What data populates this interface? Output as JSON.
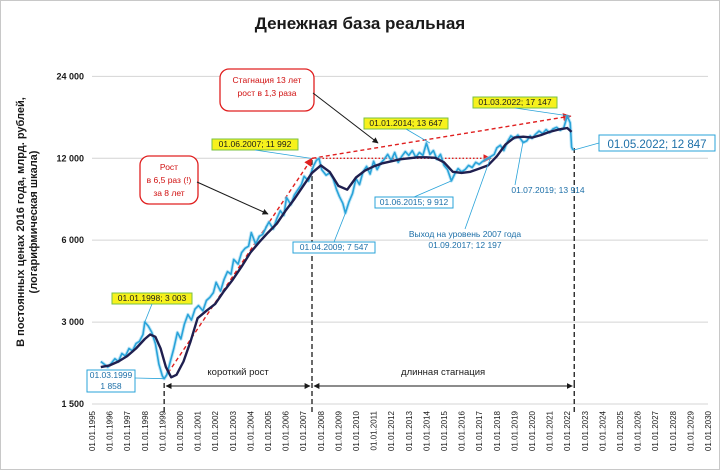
{
  "chart_data": {
    "type": "line",
    "title": "Денежная база реальная",
    "ylabel": "В постоянных ценах 2016 года, млрд. рублей, (логарифмическая шкала)",
    "ylabel_line1": "В постоянных ценах 2016 года, млрд. рублей,",
    "ylabel_line2": "(логарифмическая шкала)",
    "y_scale": "log",
    "ylim": [
      1500,
      30000
    ],
    "yticks": [
      1500,
      3000,
      6000,
      12000,
      24000
    ],
    "ytick_labels": [
      "1 500",
      "3 000",
      "6 000",
      "12 000",
      "24 000"
    ],
    "xlim": [
      1995.0,
      2030.0
    ],
    "xtick_labels": [
      "01.01.1995",
      "01.01.1996",
      "01.01.1997",
      "01.01.1998",
      "01.01.1999",
      "01.01.2000",
      "01.01.2001",
      "01.01.2002",
      "01.01.2003",
      "01.01.2004",
      "01.01.2005",
      "01.01.2006",
      "01.01.2007",
      "01.01.2008",
      "01.01.2009",
      "01.01.2010",
      "01.01.2011",
      "01.01.2012",
      "01.01.2013",
      "01.01.2014",
      "01.01.2015",
      "01.01.2016",
      "01.01.2017",
      "01.01.2018",
      "01.01.2019",
      "01.01.2020",
      "01.01.2021",
      "01.01.2022",
      "01.01.2023",
      "01.01.2024",
      "01.01.2025",
      "01.01.2026",
      "01.01.2027",
      "01.01.2028",
      "01.01.2029",
      "01.01.2030"
    ],
    "grid": "horizontal",
    "series": [
      {
        "name": "",
        "style": "monthly",
        "color": "#29a3d9",
        "x": [
          1995.5,
          1995.7,
          1995.9,
          1996.1,
          1996.3,
          1996.5,
          1996.7,
          1996.9,
          1997.1,
          1997.3,
          1997.5,
          1997.7,
          1997.9,
          1998.0,
          1998.2,
          1998.4,
          1998.6,
          1998.8,
          1999.0,
          1999.1,
          1999.25,
          1999.45,
          1999.65,
          1999.85,
          2000.05,
          2000.25,
          2000.45,
          2000.65,
          2000.85,
          2001.05,
          2001.3,
          2001.5,
          2001.7,
          2001.9,
          2002.05,
          2002.3,
          2002.5,
          2002.7,
          2002.9,
          2003.05,
          2003.3,
          2003.5,
          2003.7,
          2003.9,
          2004.05,
          2004.3,
          2004.5,
          2004.7,
          2004.9,
          2005.05,
          2005.3,
          2005.5,
          2005.7,
          2005.9,
          2006.05,
          2006.3,
          2006.5,
          2006.7,
          2006.9,
          2007.05,
          2007.3,
          2007.45,
          2007.6,
          2007.75,
          2007.9,
          2008.05,
          2008.3,
          2008.5,
          2008.7,
          2008.9,
          2009.05,
          2009.25,
          2009.4,
          2009.6,
          2009.8,
          2010.0,
          2010.2,
          2010.4,
          2010.6,
          2010.8,
          2011.0,
          2011.2,
          2011.4,
          2011.6,
          2011.8,
          2012.0,
          2012.2,
          2012.4,
          2012.6,
          2012.8,
          2013.0,
          2013.2,
          2013.4,
          2013.6,
          2013.8,
          2014.0,
          2014.2,
          2014.4,
          2014.6,
          2014.8,
          2015.0,
          2015.2,
          2015.42,
          2015.6,
          2015.8,
          2016.0,
          2016.2,
          2016.4,
          2016.6,
          2016.8,
          2017.0,
          2017.2,
          2017.4,
          2017.67,
          2017.85,
          2018.0,
          2018.2,
          2018.4,
          2018.6,
          2018.8,
          2019.0,
          2019.2,
          2019.5,
          2019.7,
          2019.9,
          2020.0,
          2020.2,
          2020.4,
          2020.6,
          2020.8,
          2021.0,
          2021.2,
          2021.4,
          2021.6,
          2021.8,
          2022.0,
          2022.17,
          2022.25,
          2022.33
        ],
        "values": [
          2150,
          2100,
          2050,
          2120,
          2200,
          2150,
          2300,
          2250,
          2400,
          2350,
          2500,
          2550,
          2700,
          3003,
          2900,
          2750,
          2500,
          2100,
          1900,
          1858,
          1920,
          2150,
          2400,
          2750,
          2600,
          2950,
          3200,
          3050,
          3350,
          3450,
          3300,
          3600,
          3700,
          3850,
          4200,
          3900,
          4300,
          4600,
          4500,
          5100,
          4900,
          5400,
          5600,
          5700,
          6400,
          5800,
          6200,
          6300,
          6700,
          7000,
          6600,
          7200,
          7700,
          7400,
          8600,
          8100,
          8800,
          9200,
          9600,
          10300,
          9900,
          10600,
          11300,
          11800,
          11992,
          10900,
          10400,
          10600,
          10100,
          9200,
          8700,
          8200,
          7547,
          8300,
          8900,
          10100,
          9600,
          10700,
          11200,
          10500,
          11700,
          10900,
          11500,
          11900,
          12400,
          11800,
          12600,
          11600,
          12200,
          12700,
          12300,
          12800,
          12100,
          12600,
          12300,
          13647,
          12400,
          12800,
          11900,
          12400,
          11300,
          10900,
          9912,
          10500,
          11000,
          10700,
          10900,
          11300,
          11100,
          11600,
          11400,
          11700,
          11900,
          12197,
          12400,
          13100,
          13400,
          12800,
          13800,
          14500,
          14200,
          14600,
          13700,
          13900,
          14500,
          14200,
          14700,
          15100,
          14800,
          15300,
          14900,
          15400,
          15600,
          15200,
          15500,
          17147,
          16200,
          13200,
          12847
        ]
      },
      {
        "name": "",
        "style": "trend",
        "color": "#1f1f4f",
        "x": [
          1995.5,
          1996.0,
          1996.5,
          1997.0,
          1997.5,
          1998.0,
          1998.3,
          1998.6,
          1998.9,
          1999.2,
          1999.5,
          1999.8,
          2000.2,
          2000.6,
          2001.0,
          2001.5,
          2002.0,
          2002.5,
          2003.0,
          2003.5,
          2004.0,
          2004.5,
          2005.0,
          2005.5,
          2006.0,
          2006.5,
          2007.0,
          2007.5,
          2008.0,
          2008.5,
          2009.0,
          2009.5,
          2010.0,
          2010.5,
          2011.0,
          2011.5,
          2012.0,
          2012.5,
          2013.0,
          2013.5,
          2014.0,
          2014.5,
          2015.0,
          2015.5,
          2016.0,
          2016.5,
          2017.0,
          2017.5,
          2018.0,
          2018.5,
          2019.0,
          2019.5,
          2020.0,
          2020.5,
          2021.0,
          2021.5,
          2022.0,
          2022.25
        ],
        "values": [
          2050,
          2080,
          2150,
          2250,
          2400,
          2600,
          2700,
          2650,
          2400,
          2050,
          1880,
          1920,
          2150,
          2550,
          3100,
          3300,
          3500,
          3900,
          4300,
          4800,
          5400,
          5900,
          6400,
          6900,
          7700,
          8500,
          9500,
          10600,
          11300,
          10700,
          9500,
          9200,
          10200,
          10800,
          11200,
          11500,
          11700,
          11900,
          12000,
          12100,
          12100,
          12050,
          11600,
          10700,
          10600,
          10700,
          11000,
          11300,
          12200,
          13500,
          14300,
          14400,
          14300,
          14600,
          15000,
          15300,
          15500,
          15000
        ]
      }
    ],
    "trend_lines": [
      {
        "from": [
          1999.1,
          1858
        ],
        "to": [
          2007.5,
          11992
        ],
        "style": "dashed",
        "color": "#e02020"
      },
      {
        "from": [
          2007.5,
          11992
        ],
        "to": [
          2022.2,
          17147
        ],
        "style": "dashed",
        "color": "#e02020"
      },
      {
        "from": [
          2007.5,
          11992
        ],
        "to": [
          2017.67,
          11992
        ],
        "style": "dotted",
        "color": "#e02020"
      }
    ],
    "vertical_markers": [
      1999.1,
      2007.5,
      2022.4
    ],
    "annotations": [
      {
        "text": "01.01.1998; 3 003",
        "style": "yellow"
      },
      {
        "text": "01.06.2007; 11 992",
        "style": "yellow"
      },
      {
        "text": "01.01.2014; 13 647",
        "style": "yellow"
      },
      {
        "text": "01.03.2022; 17 147",
        "style": "yellow"
      },
      {
        "text": "01.03.1999",
        "text2": "1 858",
        "style": "blue"
      },
      {
        "text": "01.04.2009; 7 547",
        "style": "blue"
      },
      {
        "text": "01.06.2015; 9 912",
        "style": "blue"
      },
      {
        "text": "01.07.2019; 13 914",
        "style": "plain"
      },
      {
        "text": "Выход на уровень 2007 года",
        "text2": "01.09.2017; 12 197",
        "style": "plain"
      },
      {
        "text": "01.05.2022; 12 847",
        "style": "big"
      }
    ],
    "callouts": [
      {
        "lines": [
          "Рост",
          "в 6,5 раз (!)",
          "за 8 лет"
        ]
      },
      {
        "lines": [
          "Стагнация 13 лет",
          "рост в 1,3 раза"
        ]
      }
    ],
    "periods": [
      {
        "label": "короткий рост",
        "from": 1999.1,
        "to": 2007.5
      },
      {
        "label": "длинная стагнация",
        "from": 2007.5,
        "to": 2022.4
      }
    ]
  }
}
